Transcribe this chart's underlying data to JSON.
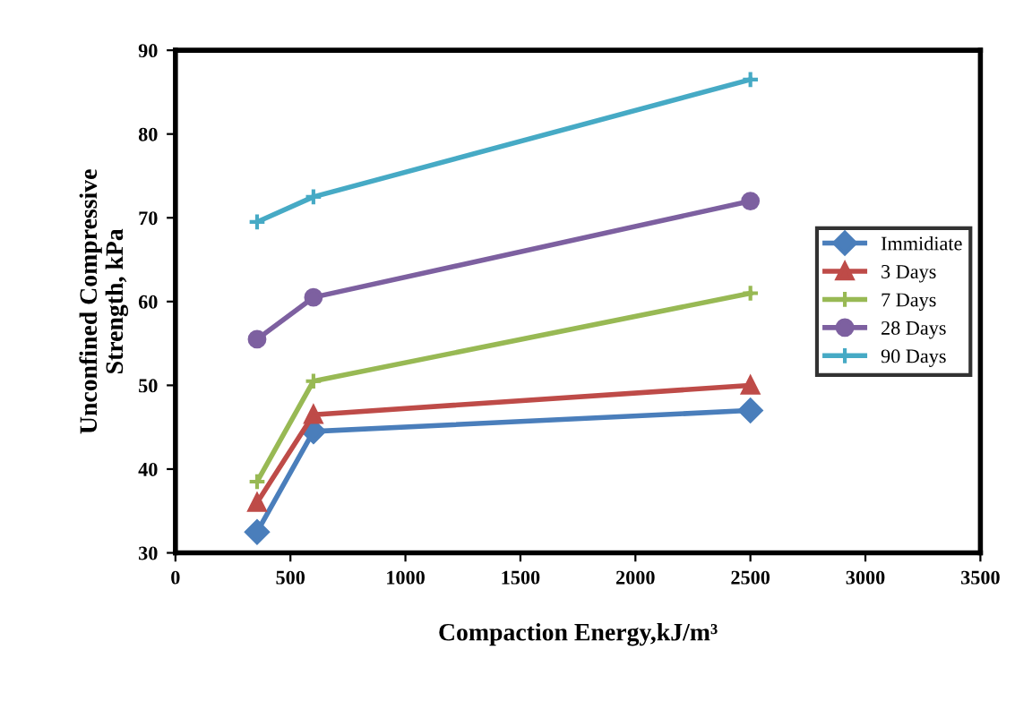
{
  "chart_data": {
    "type": "line",
    "xlabel": "Compaction Energy,kJ/m³",
    "ylabel": "Unconfined Compressive\nStrength, kPa",
    "x": [
      355,
      600,
      2500
    ],
    "series": [
      {
        "name": "Immidiate",
        "color": "#4a7ebb",
        "marker": "diamond",
        "values": [
          32.5,
          44.5,
          47
        ]
      },
      {
        "name": "3 Days",
        "color": "#be4b48",
        "marker": "triangle",
        "values": [
          36,
          46.5,
          50
        ]
      },
      {
        "name": "7 Days",
        "color": "#98b954",
        "marker": "cross",
        "values": [
          38.5,
          50.5,
          61
        ]
      },
      {
        "name": "28 Days",
        "color": "#7d60a0",
        "marker": "circle",
        "values": [
          55.5,
          60.5,
          72
        ]
      },
      {
        "name": "90 Days",
        "color": "#46aac5",
        "marker": "cross",
        "values": [
          69.5,
          72.5,
          86.5
        ]
      }
    ],
    "xlim": [
      0,
      3500
    ],
    "xticks": [
      0,
      500,
      1000,
      1500,
      2000,
      2500,
      3000,
      3500
    ],
    "ylim": [
      30,
      90
    ],
    "yticks": [
      30,
      40,
      50,
      60,
      70,
      80,
      90
    ],
    "grid": false,
    "legend": "right",
    "line_style": "solid"
  }
}
